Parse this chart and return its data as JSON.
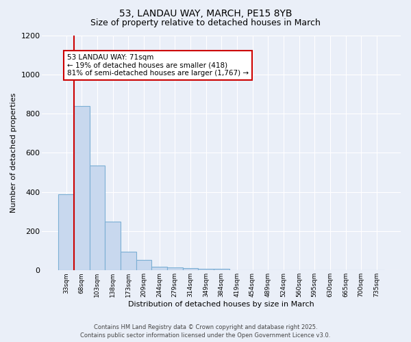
{
  "title1": "53, LANDAU WAY, MARCH, PE15 8YB",
  "title2": "Size of property relative to detached houses in March",
  "xlabel": "Distribution of detached houses by size in March",
  "ylabel": "Number of detached properties",
  "categories": [
    "33sqm",
    "68sqm",
    "103sqm",
    "138sqm",
    "173sqm",
    "209sqm",
    "244sqm",
    "279sqm",
    "314sqm",
    "349sqm",
    "384sqm",
    "419sqm",
    "454sqm",
    "489sqm",
    "524sqm",
    "560sqm",
    "595sqm",
    "630sqm",
    "665sqm",
    "700sqm",
    "735sqm"
  ],
  "values": [
    390,
    840,
    535,
    248,
    95,
    55,
    20,
    15,
    12,
    8,
    8,
    0,
    0,
    0,
    0,
    0,
    0,
    0,
    0,
    0,
    0
  ],
  "bar_color": "#c8d8ee",
  "bar_edge_color": "#7bafd4",
  "property_line_x": 0.5,
  "property_line_color": "#cc0000",
  "ylim": [
    0,
    1200
  ],
  "yticks": [
    0,
    200,
    400,
    600,
    800,
    1000,
    1200
  ],
  "annotation_text": "53 LANDAU WAY: 71sqm\n← 19% of detached houses are smaller (418)\n81% of semi-detached houses are larger (1,767) →",
  "annotation_box_color": "#ffffff",
  "annotation_border_color": "#cc0000",
  "bg_color": "#eaeff8",
  "plot_bg_color": "#eaeff8",
  "grid_color": "#ffffff",
  "footer1": "Contains HM Land Registry data © Crown copyright and database right 2025.",
  "footer2": "Contains public sector information licensed under the Open Government Licence v3.0."
}
